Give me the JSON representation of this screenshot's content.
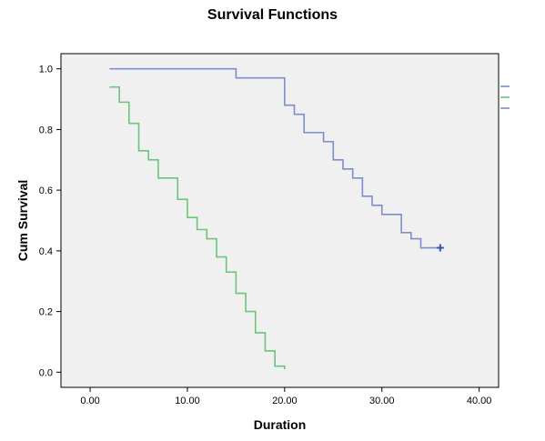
{
  "chart_data": {
    "type": "line",
    "title": "Survival Functions",
    "xlabel": "Duration",
    "ylabel": "Cum Survival",
    "xlim": [
      -3,
      42
    ],
    "ylim": [
      -0.05,
      1.05
    ],
    "xticks": [
      0,
      10,
      20,
      30,
      40
    ],
    "xtick_labels": [
      "0.00",
      "10.00",
      "20.00",
      "30.00",
      "40.00"
    ],
    "yticks": [
      0,
      0.2,
      0.4,
      0.6,
      0.8,
      1.0
    ],
    "ytick_labels": [
      "0.0",
      "0.2",
      "0.4",
      "0.6",
      "0.8",
      "1.0"
    ],
    "grid": false,
    "background": "#f0f0f0",
    "series": [
      {
        "color": "#7b8fcc",
        "censor_color": "#3a55a8",
        "steps": [
          [
            2,
            1.0
          ],
          [
            15,
            0.97
          ],
          [
            20,
            0.88
          ],
          [
            21,
            0.85
          ],
          [
            22,
            0.79
          ],
          [
            24,
            0.76
          ],
          [
            25,
            0.7
          ],
          [
            26,
            0.67
          ],
          [
            27,
            0.64
          ],
          [
            28,
            0.58
          ],
          [
            29,
            0.55
          ],
          [
            30,
            0.52
          ],
          [
            32,
            0.46
          ],
          [
            33,
            0.44
          ],
          [
            34,
            0.41
          ],
          [
            36,
            0.41
          ]
        ],
        "censored": [
          [
            36,
            0.41
          ]
        ]
      },
      {
        "color": "#6cc57a",
        "steps": [
          [
            2,
            0.94
          ],
          [
            3,
            0.89
          ],
          [
            4,
            0.82
          ],
          [
            5,
            0.73
          ],
          [
            6,
            0.7
          ],
          [
            7,
            0.64
          ],
          [
            9,
            0.57
          ],
          [
            10,
            0.51
          ],
          [
            11,
            0.47
          ],
          [
            12,
            0.44
          ],
          [
            13,
            0.38
          ],
          [
            14,
            0.33
          ],
          [
            15,
            0.26
          ],
          [
            16,
            0.2
          ],
          [
            17,
            0.13
          ],
          [
            18,
            0.07
          ],
          [
            19,
            0.02
          ],
          [
            20,
            0.01
          ]
        ],
        "censored": []
      }
    ]
  }
}
